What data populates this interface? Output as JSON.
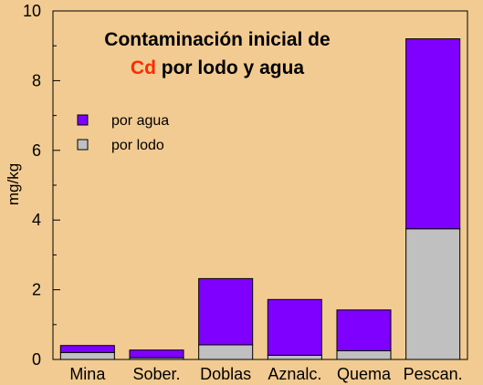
{
  "chart_data": {
    "type": "bar",
    "stacked": true,
    "title_line1": "Contaminación inicial de",
    "title_highlight": "Cd",
    "title_line2_rest": " por lodo y agua",
    "title_highlight_color": "#ff2a00",
    "xlabel": "",
    "ylabel": "mg/kg",
    "ylim": [
      0,
      10
    ],
    "yticks": [
      0,
      2,
      4,
      6,
      8,
      10
    ],
    "categories": [
      "Mina",
      "Sober.",
      "Doblas",
      "Aznalc.",
      "Quema",
      "Pescan."
    ],
    "series": [
      {
        "name": "por lodo",
        "color": "#c0c0c0",
        "values": [
          0.2,
          0.05,
          0.42,
          0.12,
          0.25,
          3.75
        ]
      },
      {
        "name": "por agua",
        "color": "#7f00ff",
        "values": [
          0.2,
          0.22,
          1.9,
          1.6,
          1.17,
          5.45
        ]
      }
    ],
    "legend": {
      "placement": "top-left",
      "order": [
        "por agua",
        "por lodo"
      ]
    },
    "grid": false,
    "background": "#f2cb92"
  }
}
